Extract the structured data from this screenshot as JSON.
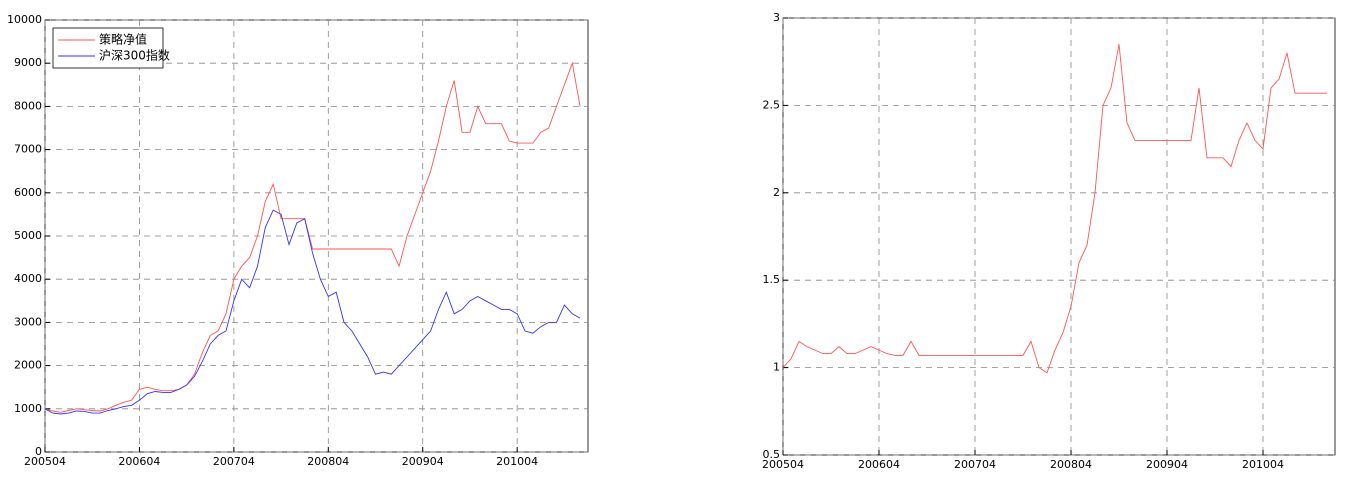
{
  "chart_data": [
    {
      "type": "line",
      "x": [
        "200504",
        "200505",
        "200506",
        "200507",
        "200508",
        "200509",
        "200510",
        "200511",
        "200512",
        "200601",
        "200602",
        "200603",
        "200604",
        "200605",
        "200606",
        "200607",
        "200608",
        "200609",
        "200610",
        "200611",
        "200612",
        "200701",
        "200702",
        "200703",
        "200704",
        "200705",
        "200706",
        "200707",
        "200708",
        "200709",
        "200710",
        "200711",
        "200712",
        "200801",
        "200802",
        "200803",
        "200804",
        "200805",
        "200806",
        "200807",
        "200808",
        "200809",
        "200810",
        "200811",
        "200812",
        "200901",
        "200902",
        "200903",
        "200904",
        "200905",
        "200906",
        "200907",
        "200908",
        "200909",
        "200910",
        "200911",
        "200912",
        "201001",
        "201002",
        "201003",
        "201004",
        "201005",
        "201006",
        "201007",
        "201008",
        "201009",
        "201010",
        "201011",
        "201012",
        "201101"
      ],
      "xticks": [
        "200504",
        "200604",
        "200704",
        "200804",
        "200904",
        "201004"
      ],
      "ylim": [
        0,
        10000
      ],
      "yticks": [
        0,
        1000,
        2000,
        3000,
        4000,
        5000,
        6000,
        7000,
        8000,
        9000,
        10000
      ],
      "grid": true,
      "legend": "upper left",
      "series": [
        {
          "name": "策略净值",
          "color": "#ff5555",
          "values": [
            1000,
            950,
            920,
            960,
            1000,
            980,
            960,
            950,
            1000,
            1080,
            1150,
            1200,
            1450,
            1500,
            1450,
            1420,
            1420,
            1450,
            1550,
            1800,
            2300,
            2700,
            2800,
            3200,
            4000,
            4300,
            4500,
            5000,
            5800,
            6200,
            5400,
            5400,
            5400,
            5400,
            4700,
            4700,
            4700,
            4700,
            4700,
            4700,
            4700,
            4700,
            4700,
            4700,
            4700,
            4300,
            5000,
            5500,
            6000,
            6500,
            7200,
            8000,
            8600,
            7400,
            7400,
            8000,
            7600,
            7600,
            7600,
            7200,
            7150,
            7150,
            7150,
            7400,
            7500,
            8000,
            8500,
            9000,
            8000,
            null
          ]
        },
        {
          "name": "沪深300指数",
          "color": "#3333ff",
          "values": [
            1000,
            900,
            880,
            900,
            950,
            940,
            900,
            900,
            960,
            1000,
            1050,
            1080,
            1200,
            1350,
            1400,
            1380,
            1380,
            1450,
            1550,
            1750,
            2100,
            2500,
            2700,
            2800,
            3500,
            4000,
            3800,
            4300,
            5200,
            5600,
            5500,
            4800,
            5300,
            5400,
            4600,
            4000,
            3600,
            3700,
            3000,
            2800,
            2500,
            2200,
            1800,
            1850,
            1800,
            2000,
            2200,
            2400,
            2600,
            2800,
            3300,
            3700,
            3200,
            3300,
            3500,
            3600,
            3500,
            3400,
            3300,
            3300,
            3200,
            2800,
            2750,
            2900,
            3000,
            3000,
            3400,
            3200,
            3100,
            null
          ]
        }
      ]
    },
    {
      "type": "line",
      "x": [
        "200504",
        "200505",
        "200506",
        "200507",
        "200508",
        "200509",
        "200510",
        "200511",
        "200512",
        "200601",
        "200602",
        "200603",
        "200604",
        "200605",
        "200606",
        "200607",
        "200608",
        "200609",
        "200610",
        "200611",
        "200612",
        "200701",
        "200702",
        "200703",
        "200704",
        "200705",
        "200706",
        "200707",
        "200708",
        "200709",
        "200710",
        "200711",
        "200712",
        "200801",
        "200802",
        "200803",
        "200804",
        "200805",
        "200806",
        "200807",
        "200808",
        "200809",
        "200810",
        "200811",
        "200812",
        "200901",
        "200902",
        "200903",
        "200904",
        "200905",
        "200906",
        "200907",
        "200908",
        "200909",
        "200910",
        "200911",
        "200912",
        "201001",
        "201002",
        "201003",
        "201004",
        "201005",
        "201006",
        "201007",
        "201008",
        "201009",
        "201010",
        "201011",
        "201012",
        "201101"
      ],
      "xticks": [
        "200504",
        "200604",
        "200704",
        "200804",
        "200904",
        "201004"
      ],
      "ylim": [
        0.5,
        3
      ],
      "yticks": [
        0.5,
        1,
        1.5,
        2,
        2.5,
        3
      ],
      "grid": true,
      "series": [
        {
          "color": "#ff5555",
          "values": [
            1.0,
            1.05,
            1.15,
            1.12,
            1.1,
            1.08,
            1.08,
            1.12,
            1.08,
            1.08,
            1.1,
            1.12,
            1.1,
            1.08,
            1.07,
            1.07,
            1.15,
            1.07,
            1.07,
            1.07,
            1.07,
            1.07,
            1.07,
            1.07,
            1.07,
            1.07,
            1.07,
            1.07,
            1.07,
            1.07,
            1.07,
            1.15,
            1.0,
            0.97,
            1.1,
            1.2,
            1.35,
            1.6,
            1.7,
            2.0,
            2.5,
            2.6,
            2.85,
            2.4,
            2.3,
            2.3,
            2.3,
            2.3,
            2.3,
            2.3,
            2.3,
            2.3,
            2.6,
            2.2,
            2.2,
            2.2,
            2.15,
            2.3,
            2.4,
            2.3,
            2.25,
            2.6,
            2.65,
            2.8,
            2.57,
            2.57,
            2.57,
            2.57,
            2.57,
            null
          ]
        }
      ]
    }
  ]
}
